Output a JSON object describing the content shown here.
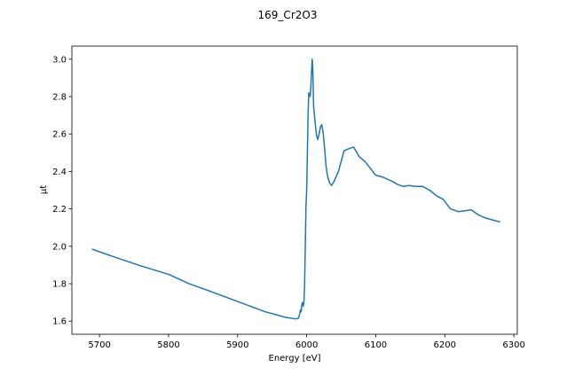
{
  "chart_data": {
    "type": "line",
    "title": "169_Cr2O3",
    "xlabel": "Energy [eV]",
    "ylabel": "μt",
    "xlim": [
      5660,
      6305
    ],
    "ylim": [
      1.53,
      3.07
    ],
    "grid": false,
    "x_ticks": [
      5700,
      5800,
      5900,
      6000,
      6100,
      6200,
      6300
    ],
    "y_ticks": [
      1.6,
      1.8,
      2.0,
      2.2,
      2.4,
      2.6,
      2.8,
      3.0
    ],
    "x_tick_labels": [
      "5700",
      "5800",
      "5900",
      "6000",
      "6100",
      "6200",
      "6300"
    ],
    "y_tick_labels": [
      "1.6",
      "1.8",
      "2.0",
      "2.2",
      "2.4",
      "2.6",
      "2.8",
      "3.0"
    ],
    "series": [
      {
        "color": "#1f77b4",
        "x": [
          5689,
          5720,
          5760,
          5800,
          5830,
          5860,
          5900,
          5940,
          5970,
          5984,
          5988,
          5990,
          5991,
          5992,
          5993,
          5994,
          5995,
          5996,
          5997,
          5998,
          5999,
          6000,
          6001,
          6002,
          6003,
          6004,
          6005,
          6006,
          6007,
          6008,
          6009,
          6010,
          6012,
          6014,
          6016,
          6018,
          6020,
          6022,
          6024,
          6026,
          6028,
          6030,
          6033,
          6036,
          6040,
          6046,
          6054,
          6060,
          6068,
          6076,
          6085,
          6100,
          6110,
          6125,
          6132,
          6140,
          6148,
          6158,
          6168,
          6178,
          6188,
          6198,
          6208,
          6220,
          6229,
          6238,
          6250,
          6260,
          6270,
          6280
        ],
        "y": [
          1.985,
          1.945,
          1.895,
          1.85,
          1.8,
          1.76,
          1.705,
          1.65,
          1.62,
          1.612,
          1.615,
          1.64,
          1.66,
          1.65,
          1.69,
          1.7,
          1.68,
          1.7,
          1.8,
          2.0,
          2.22,
          2.3,
          2.5,
          2.7,
          2.82,
          2.81,
          2.8,
          2.85,
          2.93,
          3.0,
          2.93,
          2.75,
          2.67,
          2.6,
          2.57,
          2.6,
          2.64,
          2.65,
          2.6,
          2.52,
          2.43,
          2.38,
          2.34,
          2.325,
          2.35,
          2.4,
          2.51,
          2.52,
          2.53,
          2.48,
          2.45,
          2.38,
          2.37,
          2.345,
          2.33,
          2.32,
          2.325,
          2.32,
          2.32,
          2.3,
          2.27,
          2.25,
          2.2,
          2.185,
          2.19,
          2.195,
          2.165,
          2.15,
          2.14,
          2.13
        ]
      }
    ]
  }
}
